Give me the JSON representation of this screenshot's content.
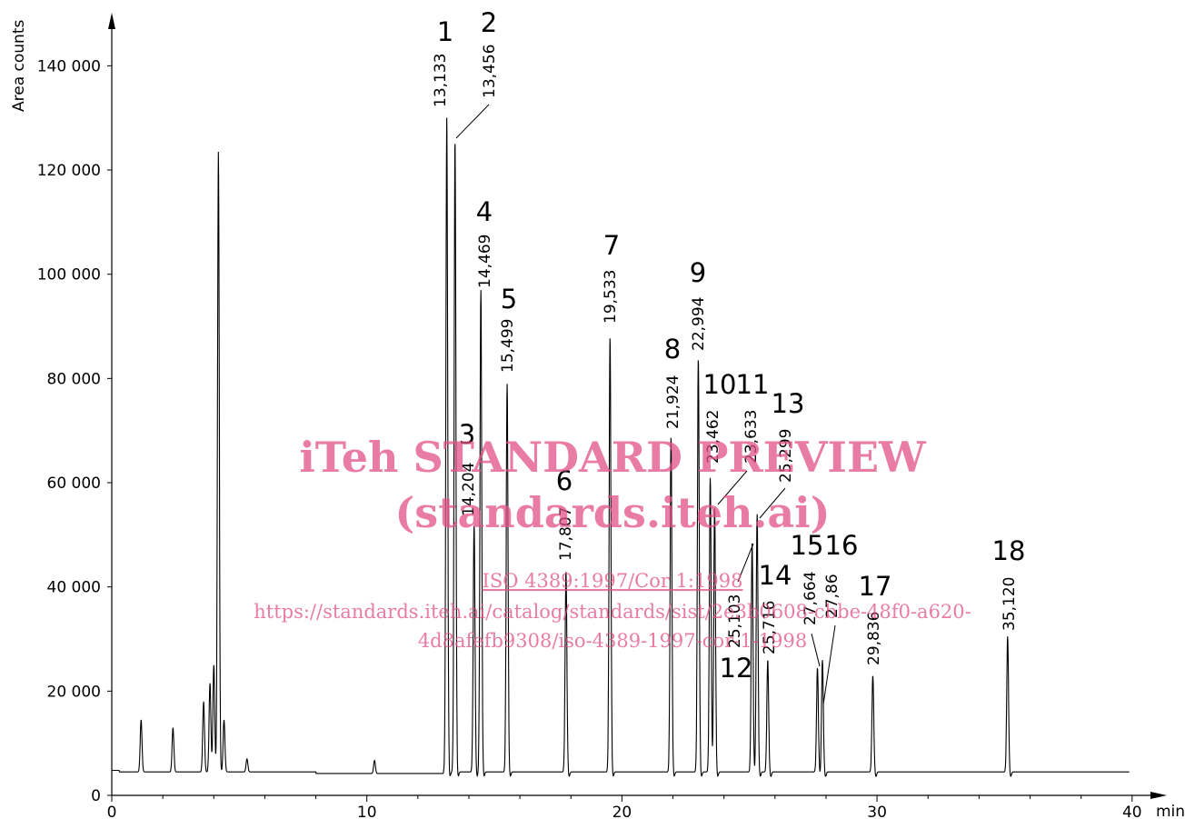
{
  "chart_data": {
    "type": "line",
    "xlabel": "min",
    "ylabel": "Area counts",
    "xlim": [
      0,
      41
    ],
    "ylim": [
      0,
      150000
    ],
    "x_ticks": [
      "0",
      "10",
      "20",
      "30",
      "40"
    ],
    "y_ticks": [
      "0",
      "20 000",
      "40 000",
      "60 000",
      "80 000",
      "100 000",
      "120 000",
      "140 000"
    ],
    "grid": false,
    "baseline": 4500,
    "solvent_peaks": [
      {
        "t": 1.15,
        "h": 14500
      },
      {
        "t": 2.4,
        "h": 13000
      },
      {
        "t": 3.6,
        "h": 18000
      },
      {
        "t": 3.85,
        "h": 21500
      },
      {
        "t": 4.0,
        "h": 25000
      },
      {
        "t": 4.18,
        "h": 123500
      },
      {
        "t": 4.4,
        "h": 14500
      },
      {
        "t": 5.3,
        "h": 7000
      },
      {
        "t": 10.3,
        "h": 7000
      }
    ],
    "peaks": [
      {
        "label": "1",
        "rt": "13,133",
        "t": 13.133,
        "h": 130500
      },
      {
        "label": "2",
        "rt": "13,456",
        "t": 13.456,
        "h": 125800
      },
      {
        "label": "3",
        "rt": "14,204",
        "t": 14.204,
        "h": 52000
      },
      {
        "label": "4",
        "rt": "14,469",
        "t": 14.469,
        "h": 97000
      },
      {
        "label": "5",
        "rt": "15,499",
        "t": 15.499,
        "h": 79000
      },
      {
        "label": "6",
        "rt": "17,807",
        "t": 17.807,
        "h": 43000
      },
      {
        "label": "7",
        "rt": "19,533",
        "t": 19.533,
        "h": 88000
      },
      {
        "label": "8",
        "rt": "21,924",
        "t": 21.924,
        "h": 69000
      },
      {
        "label": "9",
        "rt": "22,994",
        "t": 22.994,
        "h": 84000
      },
      {
        "label": "10",
        "rt": "23,462",
        "t": 23.462,
        "h": 61000
      },
      {
        "label": "11",
        "rt": "23,633",
        "t": 23.633,
        "h": 55500
      },
      {
        "label": "12",
        "rt": "25,103",
        "t": 25.103,
        "h": 48500
      },
      {
        "label": "13",
        "rt": "25,299",
        "t": 25.299,
        "h": 54000
      },
      {
        "label": "14",
        "rt": "25,716",
        "t": 25.716,
        "h": 26000
      },
      {
        "label": "15",
        "rt": "27,664",
        "t": 27.664,
        "h": 24500
      },
      {
        "label": "16",
        "rt": "27,86",
        "t": 27.86,
        "h": 26000
      },
      {
        "label": "17",
        "rt": "29,836",
        "t": 29.836,
        "h": 23000
      },
      {
        "label": "18",
        "rt": "35,120",
        "t": 35.12,
        "h": 30500
      }
    ]
  },
  "watermark": {
    "line1": "iTeh STANDARD PREVIEW",
    "line2": "(standards.iteh.ai)",
    "line3": "ISO 4389:1997/Cor 1:1998",
    "line4": "https://standards.iteh.ai/catalog/standards/sist/2e3b0608-cbbe-48f0-a620-",
    "line5": "4d8afefb9308/iso-4389-1997-cor-1-1998",
    "color": "#e15087"
  }
}
